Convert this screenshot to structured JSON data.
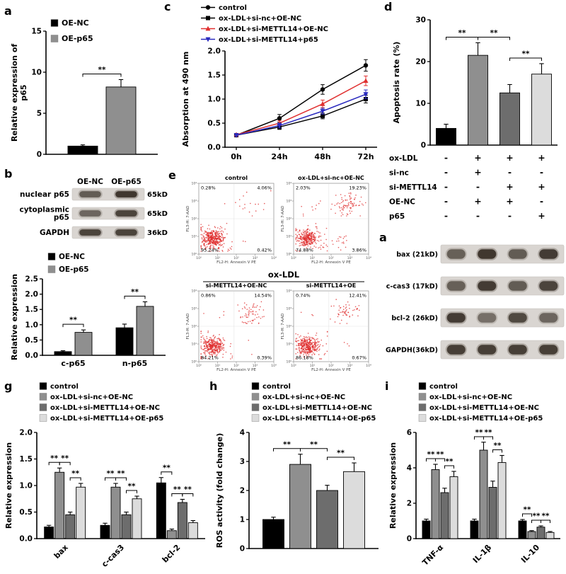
{
  "panels": {
    "a1": "a",
    "b": "b",
    "c": "c",
    "d": "d",
    "e": "e",
    "a2": "a",
    "g": "g",
    "h": "h",
    "i": "i"
  },
  "colors": {
    "black": "#000000",
    "gray": "#8f8f8f",
    "darkgray": "#6d6d6d",
    "lightgray": "#dcdcdc",
    "red": "#e03030",
    "blue": "#2b2bbf"
  },
  "chart_data": [
    {
      "id": "a",
      "type": "bar",
      "ylabel": [
        "Relative expression of",
        "p65"
      ],
      "ylim": [
        0,
        15
      ],
      "ytick": 5,
      "categories": [
        ""
      ],
      "series": [
        {
          "name": "OE-NC",
          "color_key": "black",
          "values": [
            1.0
          ],
          "errors": [
            0.15
          ]
        },
        {
          "name": "OE-p65",
          "color_key": "gray",
          "values": [
            8.2
          ],
          "errors": [
            0.9
          ]
        }
      ],
      "sig": [
        {
          "a": [
            0,
            0
          ],
          "b": [
            0,
            1
          ],
          "label": "**"
        }
      ]
    },
    {
      "id": "c",
      "type": "line",
      "ylabel": "Absorption at 490 nm",
      "ylim": [
        0,
        2.0
      ],
      "ytick": 0.5,
      "x": [
        "0h",
        "24h",
        "48h",
        "72h"
      ],
      "series": [
        {
          "name": "control",
          "marker": "circle",
          "color_key": "black",
          "values": [
            0.25,
            0.6,
            1.2,
            1.7
          ],
          "errors": [
            0.02,
            0.08,
            0.1,
            0.12
          ]
        },
        {
          "name": "ox-LDL+si-nc+OE-NC",
          "marker": "square",
          "color_key": "black",
          "values": [
            0.25,
            0.42,
            0.65,
            1.0
          ],
          "errors": [
            0.02,
            0.05,
            0.06,
            0.08
          ]
        },
        {
          "name": "ox-LDL+si-METTL14+OE-NC",
          "marker": "triangle",
          "color_key": "red",
          "values": [
            0.26,
            0.5,
            0.9,
            1.38
          ],
          "errors": [
            0.02,
            0.05,
            0.08,
            0.1
          ]
        },
        {
          "name": "ox-LDL+si-METTL14+p65",
          "marker": "triangle-down",
          "color_key": "blue",
          "values": [
            0.25,
            0.45,
            0.75,
            1.1
          ],
          "errors": [
            0.02,
            0.05,
            0.06,
            0.09
          ]
        }
      ]
    },
    {
      "id": "d",
      "type": "bar",
      "ylabel": "Apoptosis rate (%)",
      "ylim": [
        0,
        30
      ],
      "ytick": 10,
      "categories": [
        "",
        "",
        "",
        ""
      ],
      "series": [
        {
          "name": "",
          "colors": [
            "black",
            "gray",
            "darkgray",
            "lightgray"
          ],
          "values": [
            4.0,
            21.5,
            12.5,
            17.0
          ],
          "errors": [
            1.0,
            3.0,
            2.0,
            2.5
          ]
        }
      ],
      "sig": [
        {
          "a": [
            0,
            0
          ],
          "b": [
            1,
            0
          ],
          "label": "**"
        },
        {
          "a": [
            1,
            0
          ],
          "b": [
            2,
            0
          ],
          "label": "**"
        },
        {
          "a": [
            2,
            0
          ],
          "b": [
            3,
            0
          ],
          "label": "**"
        }
      ],
      "treatments": {
        "rows": [
          "ox-LDL",
          "si-nc",
          "si-METTL14",
          "OE-NC",
          "p65"
        ],
        "matrix": [
          [
            "-",
            "+",
            "+",
            "+"
          ],
          [
            "-",
            "+",
            "-",
            "-"
          ],
          [
            "-",
            "-",
            "+",
            "+"
          ],
          [
            "-",
            "+",
            "+",
            "-"
          ],
          [
            "-",
            "-",
            "-",
            "+"
          ]
        ]
      }
    },
    {
      "id": "b_blot",
      "type": "blot",
      "col_labels": [
        "OE-NC",
        "OE-p65"
      ],
      "rows": [
        {
          "label": "nuclear p65",
          "kd": "65kD",
          "bands": [
            0.55,
            0.95
          ]
        },
        {
          "label": "cytoplasmic\np65",
          "kd": "65kD",
          "bands": [
            0.45,
            0.8
          ]
        },
        {
          "label": "GAPDH",
          "kd": "36kD",
          "bands": [
            0.8,
            0.8
          ]
        }
      ]
    },
    {
      "id": "b",
      "type": "bar",
      "ylabel": "Relative expression",
      "ylim": [
        0,
        2.5
      ],
      "ytick": 0.5,
      "categories": [
        "c-p65",
        "n-p65"
      ],
      "series": [
        {
          "name": "OE-NC",
          "color_key": "black",
          "values": [
            0.12,
            0.9
          ],
          "errors": [
            0.03,
            0.12
          ]
        },
        {
          "name": "OE-p65",
          "color_key": "gray",
          "values": [
            0.75,
            1.6
          ],
          "errors": [
            0.08,
            0.15
          ]
        }
      ],
      "sig": [
        {
          "a": [
            0,
            0
          ],
          "b": [
            0,
            1
          ],
          "label": "**"
        },
        {
          "a": [
            1,
            0
          ],
          "b": [
            1,
            1
          ],
          "label": "**"
        }
      ]
    },
    {
      "id": "e",
      "type": "flow",
      "group_header": "ox-LDL",
      "xlabel": "FL2-H: Annexin V PE",
      "ylabel": "FL3-H: 7-AAD",
      "ticks": [
        "10⁰",
        "10¹",
        "10²",
        "10³",
        "10⁴"
      ],
      "plots": [
        {
          "title": "control",
          "q": [
            "0.28%",
            "4.06%",
            "95.24%",
            "0.42%"
          ]
        },
        {
          "title": "ox-LDL+si-nc+OE-NC",
          "q": [
            "2.03%",
            "19.23%",
            "74.88%",
            "3.86%"
          ]
        },
        {
          "title": "si-METTL14+OE-NC",
          "q": [
            "0.86%",
            "14.54%",
            "84.21%",
            "0.39%"
          ]
        },
        {
          "title": "si-METTL14+OE",
          "q": [
            "0.74%",
            "12.41%",
            "86.18%",
            "0.67%"
          ]
        }
      ]
    },
    {
      "id": "a2_blot",
      "type": "blot",
      "rows": [
        {
          "label": "bax (21kD)",
          "kd": "",
          "bands": [
            0.5,
            0.95,
            0.55,
            0.9
          ]
        },
        {
          "label": "c-cas3 (17kD)",
          "kd": "",
          "bands": [
            0.5,
            0.9,
            0.55,
            0.8
          ]
        },
        {
          "label": "bcl-2 (26kD)",
          "kd": "",
          "bands": [
            0.9,
            0.35,
            0.75,
            0.45
          ]
        },
        {
          "label": "GAPDH(36kD)",
          "kd": "",
          "bands": [
            0.85,
            0.85,
            0.85,
            0.85
          ]
        }
      ]
    },
    {
      "id": "g",
      "type": "bar",
      "ylabel": "Relative expression",
      "ylim": [
        0,
        2.0
      ],
      "ytick": 0.5,
      "categories": [
        "bax",
        "c-cas3",
        "bcl-2"
      ],
      "series": [
        {
          "name": "control",
          "color_key": "black",
          "values": [
            0.22,
            0.25,
            1.05
          ],
          "errors": [
            0.03,
            0.04,
            0.1
          ]
        },
        {
          "name": "ox-LDL+si-nc+OE-NC",
          "color_key": "gray",
          "values": [
            1.25,
            0.97,
            0.15
          ],
          "errors": [
            0.08,
            0.07,
            0.03
          ]
        },
        {
          "name": "ox-LDL+si-METTL14+OE-NC",
          "color_key": "darkgray",
          "values": [
            0.45,
            0.45,
            0.68
          ],
          "errors": [
            0.05,
            0.05,
            0.06
          ]
        },
        {
          "name": "ox-LDL+si-METTL14+OE-p65",
          "color_key": "lightgray",
          "values": [
            0.97,
            0.75,
            0.3
          ],
          "errors": [
            0.07,
            0.05,
            0.04
          ]
        }
      ],
      "sig": [
        {
          "a": [
            0,
            0
          ],
          "b": [
            0,
            1
          ],
          "label": "**"
        },
        {
          "a": [
            0,
            1
          ],
          "b": [
            0,
            2
          ],
          "label": "**"
        },
        {
          "a": [
            0,
            2
          ],
          "b": [
            0,
            3
          ],
          "label": "**"
        },
        {
          "a": [
            1,
            0
          ],
          "b": [
            1,
            1
          ],
          "label": "**"
        },
        {
          "a": [
            1,
            1
          ],
          "b": [
            1,
            2
          ],
          "label": "**"
        },
        {
          "a": [
            1,
            2
          ],
          "b": [
            1,
            3
          ],
          "label": "**"
        },
        {
          "a": [
            2,
            0
          ],
          "b": [
            2,
            1
          ],
          "label": "**"
        },
        {
          "a": [
            2,
            1
          ],
          "b": [
            2,
            2
          ],
          "label": "**"
        },
        {
          "a": [
            2,
            2
          ],
          "b": [
            2,
            3
          ],
          "label": "**"
        }
      ]
    },
    {
      "id": "h",
      "type": "bar",
      "ylabel": "ROS activity (fold change)",
      "ylim": [
        0,
        4
      ],
      "ytick": 1,
      "categories": [
        ""
      ],
      "series": [
        {
          "name": "control",
          "color_key": "black",
          "values": [
            1.0
          ],
          "errors": [
            0.08
          ]
        },
        {
          "name": "ox-LDL+si-nc+OE-NC",
          "color_key": "gray",
          "values": [
            2.9
          ],
          "errors": [
            0.35
          ]
        },
        {
          "name": "ox-LDL+si-METTL14+OE-NC",
          "color_key": "darkgray",
          "values": [
            2.0
          ],
          "errors": [
            0.18
          ]
        },
        {
          "name": "ox-LDL+si-METTL14+OE-p65",
          "color_key": "lightgray",
          "values": [
            2.65
          ],
          "errors": [
            0.3
          ]
        }
      ],
      "sig": [
        {
          "a": [
            0,
            0
          ],
          "b": [
            0,
            1
          ],
          "label": "**"
        },
        {
          "a": [
            0,
            1
          ],
          "b": [
            0,
            2
          ],
          "label": "**"
        },
        {
          "a": [
            0,
            2
          ],
          "b": [
            0,
            3
          ],
          "label": "**"
        }
      ]
    },
    {
      "id": "i",
      "type": "bar",
      "ylabel": "Relative expression",
      "ylim": [
        0,
        6
      ],
      "ytick": 2,
      "categories": [
        "TNF-α",
        "IL-1β",
        "IL-10"
      ],
      "series": [
        {
          "name": "control",
          "color_key": "black",
          "values": [
            1.0,
            1.0,
            1.0
          ],
          "errors": [
            0.1,
            0.1,
            0.08
          ]
        },
        {
          "name": "ox-LDL+si-nc+OE-NC",
          "color_key": "gray",
          "values": [
            3.9,
            5.0,
            0.4
          ],
          "errors": [
            0.3,
            0.45,
            0.05
          ]
        },
        {
          "name": "ox-LDL+si-METTL14+OE-NC",
          "color_key": "darkgray",
          "values": [
            2.6,
            2.9,
            0.65
          ],
          "errors": [
            0.25,
            0.35,
            0.07
          ]
        },
        {
          "name": "ox-LDL+si-METTL14+OE-p65",
          "color_key": "lightgray",
          "values": [
            3.5,
            4.3,
            0.35
          ],
          "errors": [
            0.3,
            0.4,
            0.05
          ]
        }
      ],
      "sig": [
        {
          "a": [
            0,
            0
          ],
          "b": [
            0,
            1
          ],
          "label": "**"
        },
        {
          "a": [
            0,
            1
          ],
          "b": [
            0,
            2
          ],
          "label": "**"
        },
        {
          "a": [
            0,
            2
          ],
          "b": [
            0,
            3
          ],
          "label": "**"
        },
        {
          "a": [
            1,
            0
          ],
          "b": [
            1,
            1
          ],
          "label": "**"
        },
        {
          "a": [
            1,
            1
          ],
          "b": [
            1,
            2
          ],
          "label": "**"
        },
        {
          "a": [
            1,
            2
          ],
          "b": [
            1,
            3
          ],
          "label": "**"
        },
        {
          "a": [
            2,
            0
          ],
          "b": [
            2,
            1
          ],
          "label": "**"
        },
        {
          "a": [
            2,
            1
          ],
          "b": [
            2,
            2
          ],
          "label": "**"
        },
        {
          "a": [
            2,
            2
          ],
          "b": [
            2,
            3
          ],
          "label": "**"
        }
      ]
    }
  ]
}
